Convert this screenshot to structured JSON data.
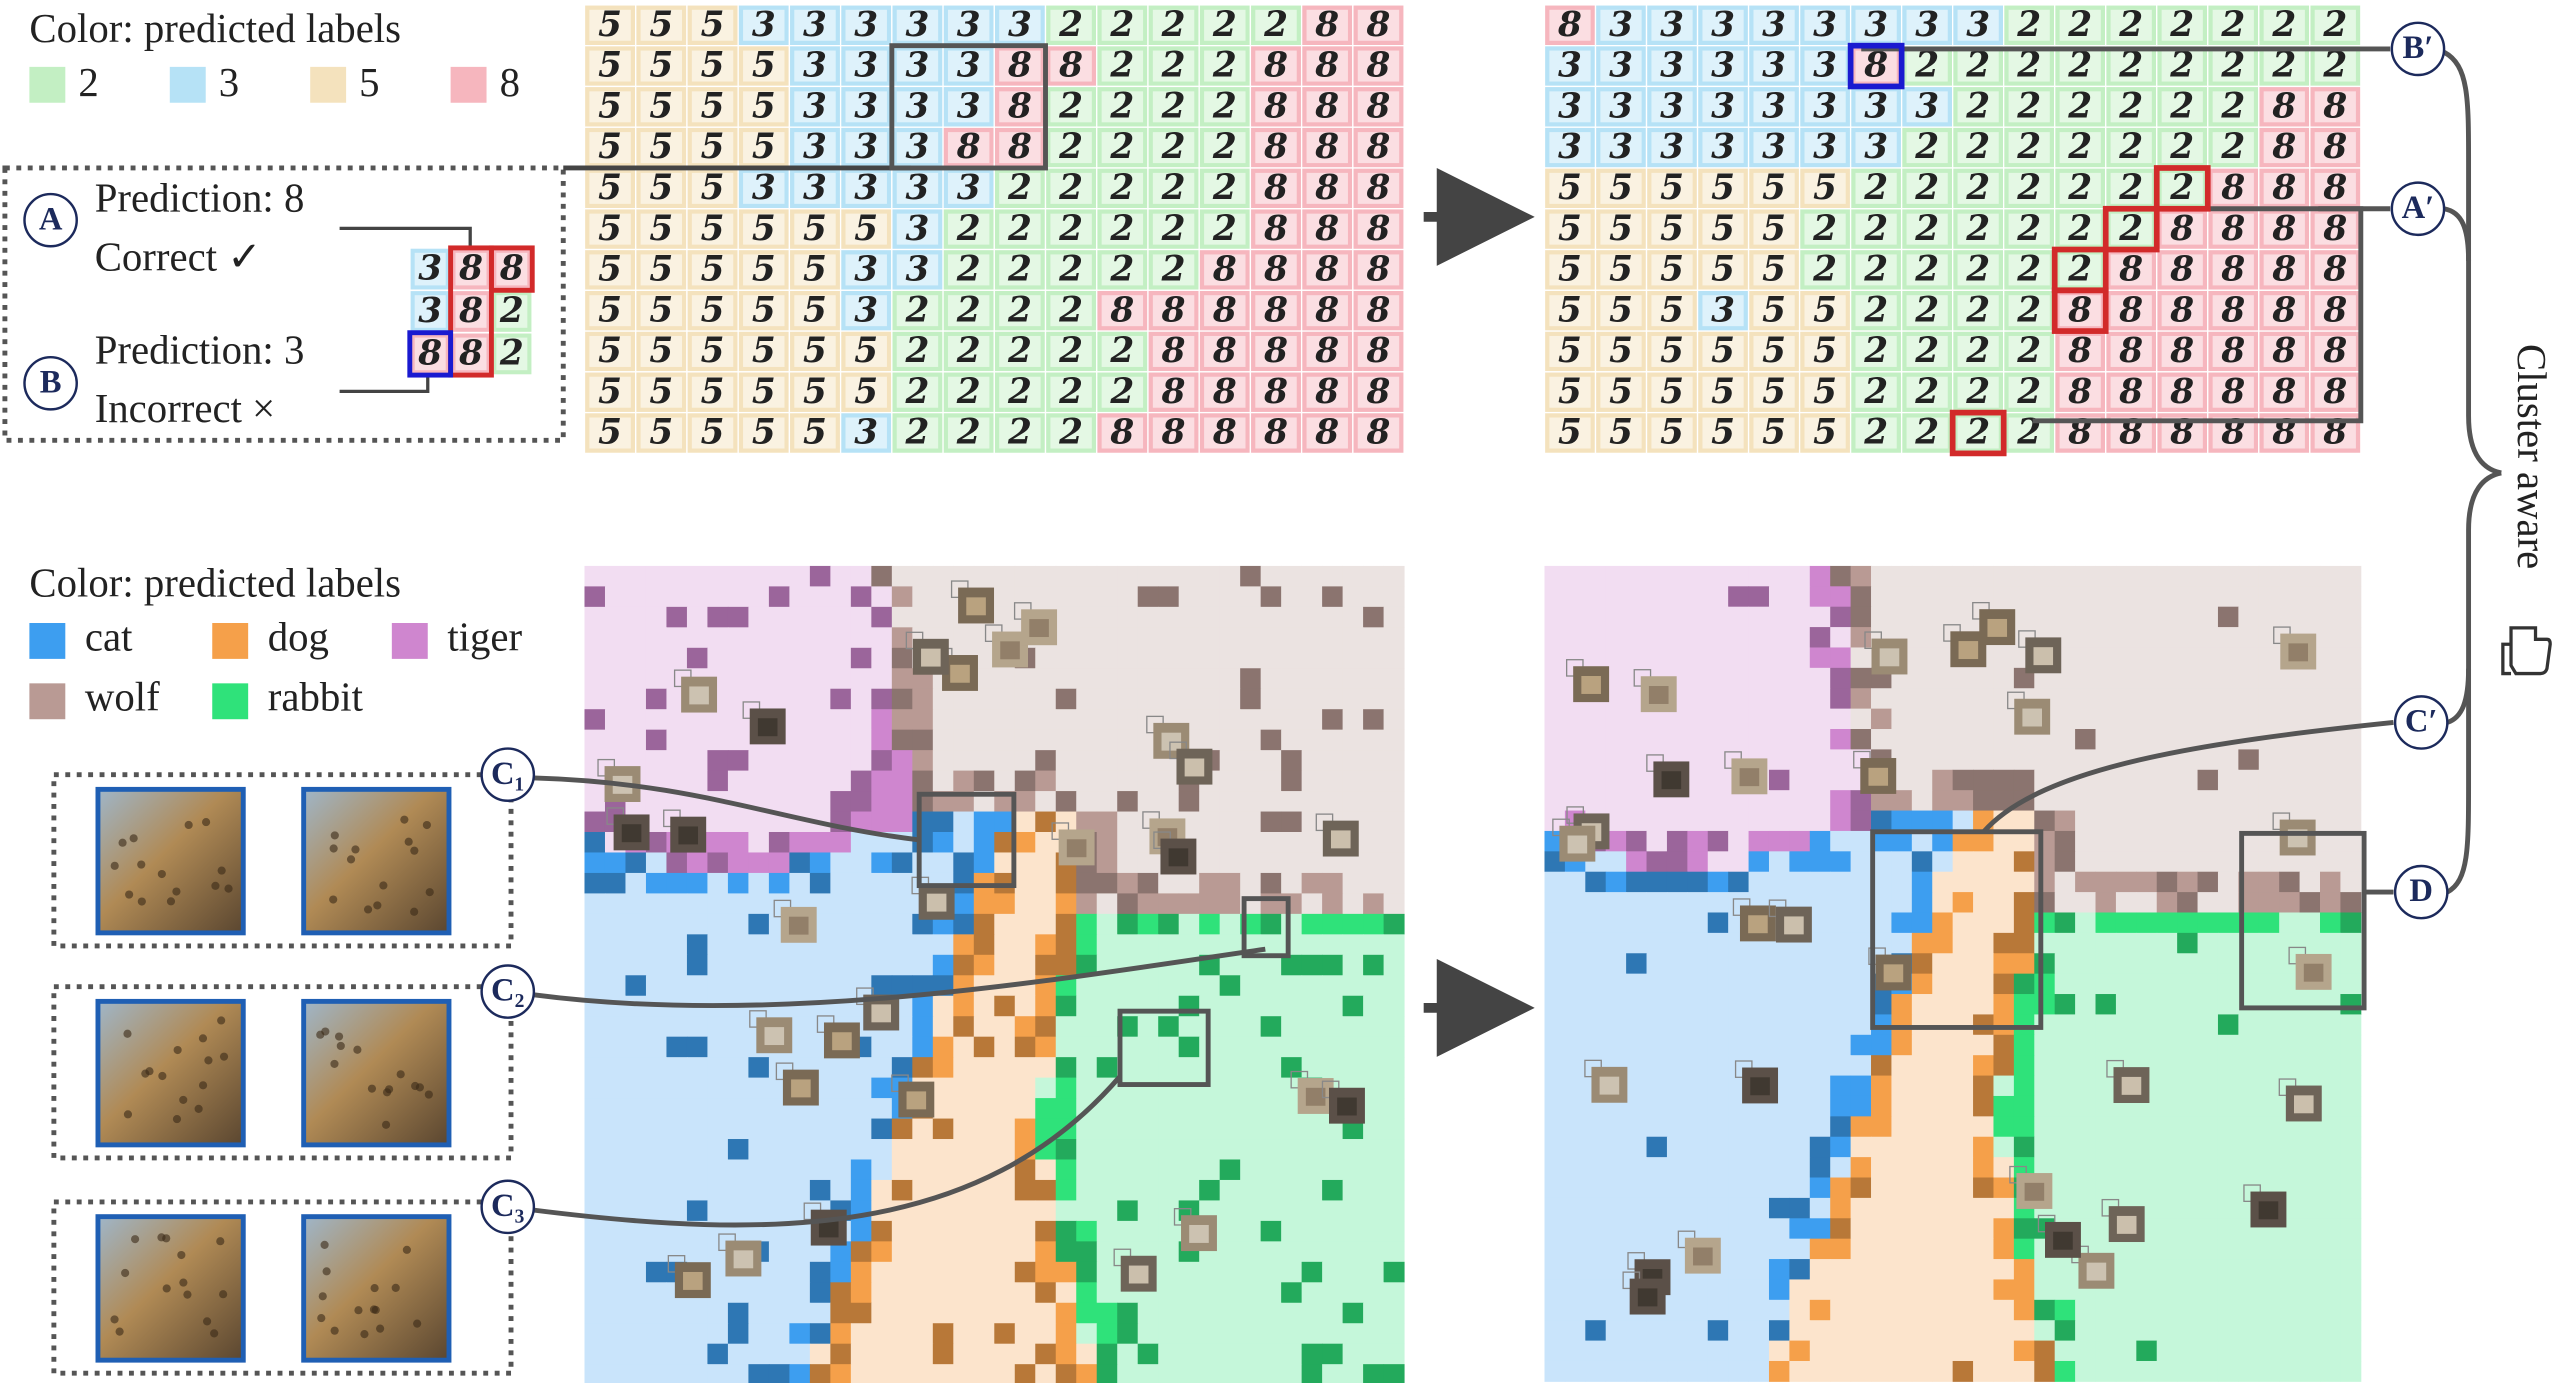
{
  "digits": {
    "legend_title": "Color: predicted labels",
    "legend": [
      {
        "label": "2",
        "color": "#c3efc3"
      },
      {
        "label": "3",
        "color": "#b6e2f6"
      },
      {
        "label": "5",
        "color": "#f4e2bd"
      },
      {
        "label": "8",
        "color": "#f6b6be"
      }
    ],
    "before_rows": [
      "5553333332222288",
      "5555333388222888",
      "5555333382222888",
      "5555333882222888",
      "5553333322222888",
      "5555553222222888",
      "5555533222228888",
      "5555532222888888",
      "5555552222288888",
      "5555552222288888",
      "5555532222888888"
    ],
    "after_rows": [
      "8333333332222222",
      "3333338222222222",
      "3333333322222288",
      "3333333222222288",
      "5555552222222888",
      "5555522222228888",
      "5555522222288888",
      "5553552222888888",
      "5555552222888888",
      "5555552222888888",
      "5555552222888888"
    ],
    "examples": {
      "a_label": "A",
      "a_prediction": "Prediction: 8",
      "a_result": "Correct ✓",
      "b_label": "B",
      "b_prediction": "Prediction: 3",
      "b_result": "Incorrect ×",
      "mini_rows": [
        "388",
        "382",
        "882"
      ]
    },
    "callouts": [
      "B′",
      "A′"
    ]
  },
  "animals": {
    "legend_title": "Color: predicted labels",
    "legend": [
      {
        "label": "cat",
        "color": "#3d9ef0"
      },
      {
        "label": "dog",
        "color": "#f5a04a"
      },
      {
        "label": "tiger",
        "color": "#cf86cf"
      },
      {
        "label": "wolf",
        "color": "#b99a94"
      },
      {
        "label": "rabbit",
        "color": "#2fe27a"
      }
    ],
    "callouts": [
      "C₁",
      "C₂",
      "C₃"
    ],
    "right_callouts": [
      "C′",
      "D"
    ]
  },
  "side_label": "Cluster aware"
}
